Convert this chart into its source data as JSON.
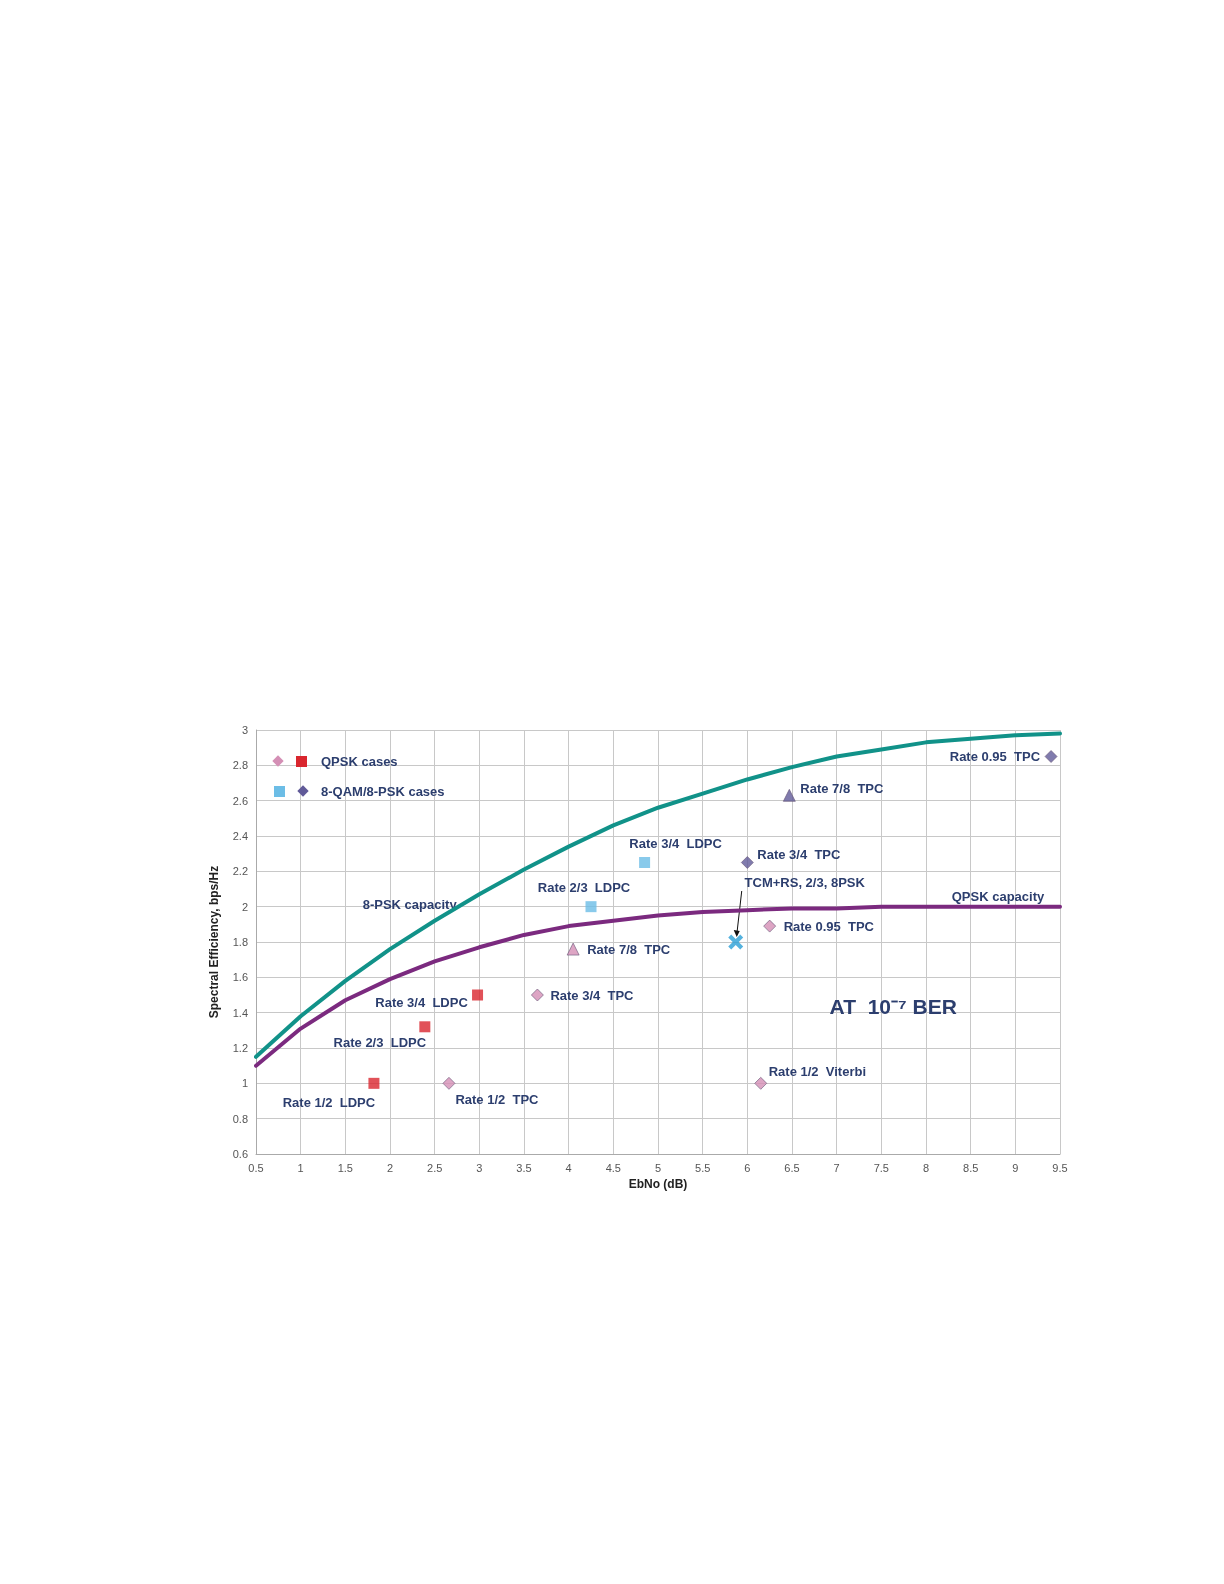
{
  "chart_data": {
    "type": "scatter",
    "xlabel": "EbNo (dB)",
    "ylabel": "Spectral Efficiency, bps/Hz",
    "xlim": [
      0.5,
      9.5
    ],
    "xticks": [
      0.5,
      1,
      1.5,
      2,
      2.5,
      3,
      3.5,
      4,
      4.5,
      5,
      5.5,
      6,
      6.5,
      7,
      7.5,
      8,
      8.5,
      9,
      9.5
    ],
    "ylim": [
      0.6,
      3
    ],
    "yticks": [
      0.6,
      0.8,
      1,
      1.2,
      1.4,
      1.6,
      1.8,
      2,
      2.2,
      2.4,
      2.6,
      2.8,
      3
    ],
    "grid": true,
    "legend": "top left",
    "series": [
      {
        "color": "#d48fb5",
        "marker": "diamond",
        "x": [
          2.66,
          3.65,
          6.15,
          6.25
        ],
        "values": [
          1.0,
          1.5,
          1.0,
          1.89
        ]
      },
      {
        "name": "QPSK cases",
        "color": "#d9262e",
        "marker": "square",
        "x": [
          1.82,
          2.39,
          2.98
        ],
        "values": [
          1.0,
          1.32,
          1.5
        ]
      },
      {
        "color": "#6cbde6",
        "marker": "square",
        "x": [
          4.25,
          4.85
        ],
        "values": [
          2.0,
          2.25
        ]
      },
      {
        "name": "8-QAM/8-PSK cases",
        "color": "#605a98",
        "marker": "diamond",
        "x": [
          6.0,
          9.4
        ],
        "values": [
          2.25,
          2.85
        ]
      },
      {
        "color": "#d48fb5",
        "marker": "triangle",
        "x": [
          4.05
        ],
        "values": [
          1.76
        ]
      },
      {
        "color": "#605a98",
        "marker": "triangle",
        "x": [
          6.47
        ],
        "values": [
          2.63
        ]
      },
      {
        "color": "#2a9fd6",
        "marker": "cross",
        "x": [
          5.87
        ],
        "values": [
          1.8
        ]
      },
      {
        "name": "8-PSK capacity",
        "type": "line",
        "color": "#119289",
        "marker": "none",
        "line_style": "solid",
        "x": [
          0.5,
          1,
          1.5,
          2,
          2.5,
          3,
          3.5,
          4,
          4.5,
          5,
          5.5,
          6,
          6.5,
          7,
          7.5,
          8,
          8.5,
          9,
          9.5
        ],
        "values": [
          1.15,
          1.38,
          1.58,
          1.76,
          1.92,
          2.07,
          2.21,
          2.34,
          2.46,
          2.56,
          2.64,
          2.72,
          2.79,
          2.85,
          2.89,
          2.93,
          2.95,
          2.97,
          2.98
        ]
      },
      {
        "name": "QPSK capacity",
        "type": "line",
        "color": "#7b2a7f",
        "marker": "none",
        "line_style": "solid",
        "x": [
          0.5,
          1,
          1.5,
          2,
          2.5,
          3,
          3.5,
          4,
          4.5,
          5,
          5.5,
          6,
          6.5,
          7,
          7.5,
          8,
          8.5,
          9,
          9.5
        ],
        "values": [
          1.1,
          1.31,
          1.47,
          1.59,
          1.69,
          1.77,
          1.84,
          1.89,
          1.92,
          1.95,
          1.97,
          1.98,
          1.99,
          1.99,
          2.0,
          2.0,
          2.0,
          2.0,
          2.0
        ]
      }
    ],
    "annotations": [
      {
        "text": "Rate 1/2  LDPC",
        "x": 1.82,
        "y": 1.0
      },
      {
        "text": "Rate 2/3  LDPC",
        "x": 2.39,
        "y": 1.32
      },
      {
        "text": "Rate 3/4  LDPC",
        "x": 2.98,
        "y": 1.5
      },
      {
        "text": "Rate 1/2  TPC",
        "x": 2.66,
        "y": 1.0
      },
      {
        "text": "Rate 3/4  TPC",
        "x": 3.65,
        "y": 1.5
      },
      {
        "text": "Rate 7/8  TPC",
        "x": 4.05,
        "y": 1.76
      },
      {
        "text": "Rate 2/3  LDPC",
        "x": 4.25,
        "y": 2.0
      },
      {
        "text": "Rate 3/4  LDPC",
        "x": 4.85,
        "y": 2.25
      },
      {
        "text": "Rate 3/4  TPC",
        "x": 6.0,
        "y": 2.25
      },
      {
        "text": "Rate 7/8  TPC",
        "x": 6.47,
        "y": 2.63
      },
      {
        "text": "Rate 0.95  TPC",
        "x": 9.4,
        "y": 2.85
      },
      {
        "text": "Rate 0.95  TPC",
        "x": 6.25,
        "y": 1.89
      },
      {
        "text": "Rate 1/2  Viterbi",
        "x": 6.15,
        "y": 1.0
      },
      {
        "text": "TCM+RS, 2/3, 8PSK",
        "x": 5.87,
        "y": 1.8
      },
      "AT  10⁻⁷ BER"
    ]
  }
}
